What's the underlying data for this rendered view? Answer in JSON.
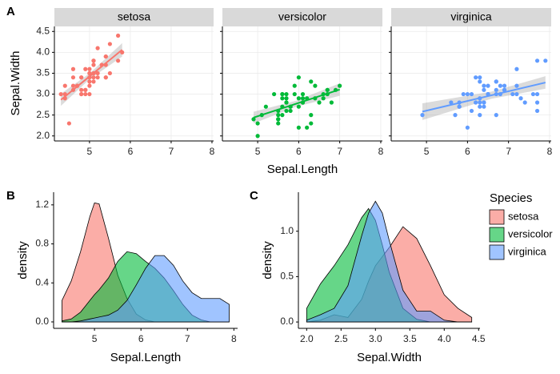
{
  "chart_data": [
    {
      "type": "facet-scatter",
      "panel": "A",
      "xlabel": "Sepal.Length",
      "ylabel": "Sepal.Width",
      "xlim": [
        4.14,
        8.04
      ],
      "ylim": [
        1.88,
        4.62
      ],
      "xticks": [
        5,
        6,
        7,
        8
      ],
      "yticks": [
        {
          "value": 2,
          "label": "2.0"
        },
        2.5,
        {
          "value": 3,
          "label": "3.0"
        },
        3.5,
        {
          "value": 4,
          "label": "4.0"
        },
        4.5
      ],
      "grid": true,
      "series": [
        {
          "name": "setosa",
          "color": "#F8766D",
          "x": [
            5.1,
            4.9,
            4.7,
            4.6,
            5.0,
            5.4,
            4.6,
            5.0,
            4.4,
            4.9,
            5.4,
            4.8,
            4.8,
            4.3,
            5.8,
            5.7,
            5.4,
            5.1,
            5.7,
            5.1,
            5.4,
            5.1,
            4.6,
            5.1,
            4.8,
            5.0,
            5.0,
            5.2,
            5.2,
            4.7,
            4.8,
            5.4,
            5.2,
            5.5,
            4.9,
            5.0,
            5.5,
            4.9,
            4.4,
            5.1,
            5.0,
            4.5,
            4.4,
            5.0,
            5.1,
            4.8,
            5.1,
            4.6,
            5.3,
            5.0
          ],
          "y": [
            3.5,
            3.0,
            3.2,
            3.1,
            3.6,
            3.9,
            3.4,
            3.4,
            2.9,
            3.1,
            3.7,
            3.4,
            3.0,
            3.0,
            4.0,
            4.4,
            3.9,
            3.5,
            3.8,
            3.8,
            3.4,
            3.7,
            3.6,
            3.3,
            3.4,
            3.0,
            3.4,
            3.5,
            3.4,
            3.2,
            3.1,
            3.4,
            4.1,
            4.2,
            3.1,
            3.2,
            3.5,
            3.6,
            3.0,
            3.4,
            3.5,
            2.3,
            3.2,
            3.5,
            3.8,
            3.0,
            3.8,
            3.2,
            3.7,
            3.3
          ],
          "fit": {
            "x": [
              4.3,
              5.006,
              5.8
            ],
            "y": [
              2.864,
              3.428,
              4.062
            ],
            "lower": [
              2.72,
              3.36,
              3.9
            ],
            "upper": [
              3.01,
              3.5,
              4.22
            ]
          }
        },
        {
          "name": "versicolor",
          "color": "#00BA38",
          "x": [
            7.0,
            6.4,
            6.9,
            5.5,
            6.5,
            5.7,
            6.3,
            4.9,
            6.6,
            5.2,
            5.0,
            5.9,
            6.0,
            6.1,
            5.6,
            6.7,
            5.6,
            5.8,
            6.2,
            5.6,
            5.9,
            6.1,
            6.3,
            6.1,
            6.4,
            6.6,
            6.8,
            6.7,
            6.0,
            5.7,
            5.5,
            5.5,
            5.8,
            6.0,
            5.4,
            6.0,
            6.7,
            6.3,
            5.6,
            5.5,
            5.5,
            6.1,
            5.8,
            5.0,
            5.6,
            5.7,
            5.7,
            6.2,
            5.1,
            5.7
          ],
          "y": [
            3.2,
            3.2,
            3.1,
            2.3,
            2.8,
            2.8,
            3.3,
            2.4,
            2.9,
            2.7,
            2.0,
            3.0,
            2.2,
            2.9,
            2.9,
            3.1,
            3.0,
            2.7,
            2.2,
            2.5,
            3.2,
            2.8,
            2.5,
            2.8,
            2.9,
            3.0,
            2.8,
            3.0,
            2.9,
            2.6,
            2.4,
            2.4,
            2.7,
            2.7,
            3.0,
            3.4,
            3.1,
            2.3,
            3.0,
            2.5,
            2.6,
            3.0,
            2.6,
            2.3,
            2.7,
            3.0,
            2.9,
            2.9,
            2.5,
            2.8
          ],
          "fit": {
            "x": [
              4.9,
              5.936,
              7.0
            ],
            "y": [
              2.439,
              2.77,
              3.11
            ],
            "lower": [
              2.3,
              2.7,
              2.96
            ],
            "upper": [
              2.58,
              2.84,
              3.26
            ]
          }
        },
        {
          "name": "virginica",
          "color": "#619CFF",
          "x": [
            6.3,
            5.8,
            7.1,
            6.3,
            6.5,
            7.6,
            4.9,
            7.3,
            6.7,
            7.2,
            6.5,
            6.4,
            6.8,
            5.7,
            5.8,
            6.4,
            6.5,
            7.7,
            7.7,
            6.0,
            6.9,
            5.6,
            7.7,
            6.3,
            6.7,
            7.2,
            6.2,
            6.1,
            6.4,
            7.2,
            7.4,
            7.9,
            6.4,
            6.3,
            6.1,
            7.7,
            6.3,
            6.4,
            6.0,
            6.9,
            6.7,
            6.9,
            5.8,
            6.8,
            6.7,
            6.7,
            6.3,
            6.5,
            6.2,
            5.9
          ],
          "y": [
            3.3,
            2.7,
            3.0,
            2.9,
            3.0,
            3.0,
            2.5,
            2.9,
            2.5,
            3.6,
            3.2,
            2.7,
            3.0,
            2.5,
            2.8,
            3.2,
            3.0,
            3.8,
            2.6,
            2.2,
            3.2,
            2.8,
            2.8,
            2.7,
            3.3,
            3.2,
            2.8,
            3.0,
            2.8,
            3.0,
            2.8,
            3.8,
            2.8,
            2.8,
            2.6,
            3.0,
            3.4,
            3.1,
            3.0,
            3.1,
            3.1,
            3.1,
            2.7,
            3.2,
            3.3,
            3.0,
            2.5,
            3.0,
            3.4,
            3.0
          ],
          "fit": {
            "x": [
              4.9,
              6.588,
              7.9
            ],
            "y": [
              2.582,
              2.973,
              3.278
            ],
            "lower": [
              2.38,
              2.89,
              3.13
            ],
            "upper": [
              2.78,
              3.06,
              3.43
            ]
          }
        }
      ]
    },
    {
      "type": "density",
      "panel": "B",
      "xlabel": "Sepal.Length",
      "ylabel": "density",
      "xlim": [
        4.12,
        8.08
      ],
      "ylim": [
        -0.066,
        1.33
      ],
      "xticks": [
        5,
        6,
        7,
        8
      ],
      "yticks": [
        {
          "value": 0,
          "label": "0.0"
        },
        0.4,
        0.8,
        1.2
      ],
      "grid": false,
      "x": [
        4.3,
        4.5,
        4.7,
        4.9,
        5.0,
        5.1,
        5.3,
        5.5,
        5.7,
        5.9,
        6.1,
        6.3,
        6.5,
        6.7,
        6.9,
        7.1,
        7.3,
        7.5,
        7.7,
        7.9
      ],
      "series": [
        {
          "name": "setosa",
          "color": "#F8766D",
          "values": [
            0.22,
            0.42,
            0.72,
            1.08,
            1.22,
            1.21,
            0.86,
            0.48,
            0.24,
            0.08,
            0.02,
            0,
            0,
            0,
            0,
            0,
            0,
            0,
            0,
            0
          ]
        },
        {
          "name": "versicolor",
          "color": "#00BA38",
          "values": [
            0.01,
            0.03,
            0.1,
            0.22,
            0.28,
            0.33,
            0.45,
            0.62,
            0.72,
            0.7,
            0.62,
            0.55,
            0.45,
            0.32,
            0.18,
            0.07,
            0.02,
            0,
            0,
            0
          ]
        },
        {
          "name": "virginica",
          "color": "#619CFF",
          "values": [
            0,
            0,
            0.01,
            0.03,
            0.04,
            0.05,
            0.07,
            0.12,
            0.22,
            0.38,
            0.55,
            0.68,
            0.68,
            0.58,
            0.42,
            0.3,
            0.24,
            0.24,
            0.24,
            0.18
          ]
        }
      ]
    },
    {
      "type": "density",
      "panel": "C",
      "xlabel": "Sepal.Width",
      "ylabel": "density",
      "xlim": [
        1.88,
        4.52
      ],
      "ylim": [
        -0.07,
        1.43
      ],
      "xticks": [
        {
          "value": 2,
          "label": "2.0"
        },
        2.5,
        {
          "value": 3,
          "label": "3.0"
        },
        3.5,
        {
          "value": 4,
          "label": "4.0"
        },
        4.5
      ],
      "yticks": [
        {
          "value": 0,
          "label": "0.0"
        },
        0.5,
        {
          "value": 1,
          "label": "1.0"
        }
      ],
      "grid": false,
      "legend_title": "Species",
      "legend": "right",
      "x": [
        2.0,
        2.2,
        2.4,
        2.6,
        2.8,
        2.9,
        3.0,
        3.1,
        3.2,
        3.4,
        3.6,
        3.8,
        4.0,
        4.2,
        4.4
      ],
      "series": [
        {
          "name": "setosa",
          "color": "#F8766D",
          "values": [
            0,
            0.02,
            0.08,
            0.05,
            0.25,
            0.45,
            0.62,
            0.72,
            0.82,
            1.05,
            0.92,
            0.62,
            0.3,
            0.15,
            0.05
          ]
        },
        {
          "name": "versicolor",
          "color": "#00BA38",
          "values": [
            0.15,
            0.42,
            0.62,
            0.85,
            1.15,
            1.25,
            1.12,
            0.85,
            0.55,
            0.15,
            0.03,
            0,
            0,
            0,
            0
          ]
        },
        {
          "name": "virginica",
          "color": "#619CFF",
          "values": [
            0.02,
            0.08,
            0.15,
            0.4,
            0.95,
            1.2,
            1.33,
            1.2,
            0.9,
            0.35,
            0.12,
            0.12,
            0.02,
            0,
            0
          ]
        }
      ]
    }
  ]
}
